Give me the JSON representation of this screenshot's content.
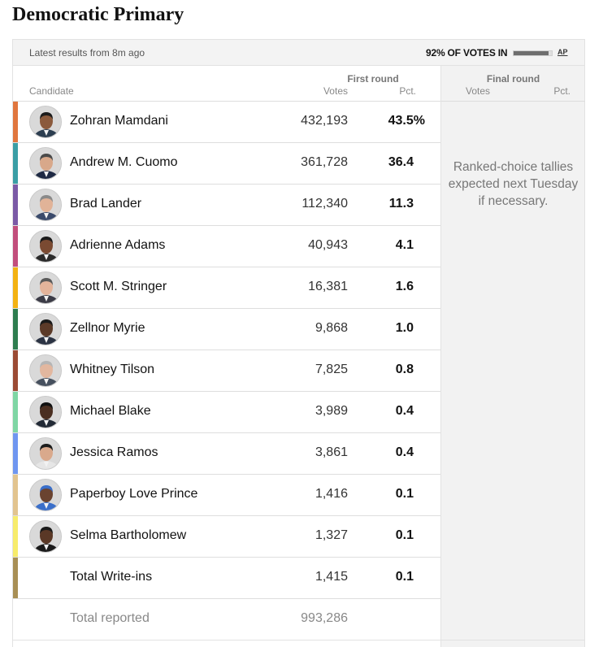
{
  "title": "Democratic Primary",
  "status": {
    "latest": "Latest results from 8m ago",
    "votes_in": "92% OF VOTES IN",
    "votes_in_fraction": 0.92,
    "source": "AP"
  },
  "headers": {
    "candidate": "Candidate",
    "first_round": "First round",
    "final_round": "Final round",
    "votes": "Votes",
    "pct": "Pct."
  },
  "final_round_note": "Ranked-choice tallies expected next Tuesday if necessary.",
  "candidates": [
    {
      "name": "Zohran Mamdani",
      "votes": "432,193",
      "pct": "43.5%",
      "color": "#e0763e",
      "skin": "#8b5a3c",
      "hair": "#1c1c1c",
      "suit": "#2c3e50"
    },
    {
      "name": "Andrew M. Cuomo",
      "votes": "361,728",
      "pct": "36.4",
      "color": "#3a9ea5",
      "skin": "#d8a88a",
      "hair": "#4a4a4a",
      "suit": "#1f2a44"
    },
    {
      "name": "Brad Lander",
      "votes": "112,340",
      "pct": "11.3",
      "color": "#7b5aa6",
      "skin": "#e1b398",
      "hair": "#8a8a8a",
      "suit": "#3a4a6b"
    },
    {
      "name": "Adrienne Adams",
      "votes": "40,943",
      "pct": "4.1",
      "color": "#c24e7c",
      "skin": "#7a4a32",
      "hair": "#1a1a1a",
      "suit": "#2a2a2a"
    },
    {
      "name": "Scott M. Stringer",
      "votes": "16,381",
      "pct": "1.6",
      "color": "#f3b212",
      "skin": "#e3b49b",
      "hair": "#5a5a5a",
      "suit": "#3b3b46"
    },
    {
      "name": "Zellnor Myrie",
      "votes": "9,868",
      "pct": "1.0",
      "color": "#2e7d4f",
      "skin": "#5b3a28",
      "hair": "#1a1a1a",
      "suit": "#2b3343"
    },
    {
      "name": "Whitney Tilson",
      "votes": "7,825",
      "pct": "0.8",
      "color": "#9b4b34",
      "skin": "#e2b79f",
      "hair": "#b5b5b5",
      "suit": "#46505e"
    },
    {
      "name": "Michael Blake",
      "votes": "3,989",
      "pct": "0.4",
      "color": "#7fd6a4",
      "skin": "#4a2e20",
      "hair": "#111111",
      "suit": "#222a36"
    },
    {
      "name": "Jessica Ramos",
      "votes": "3,861",
      "pct": "0.4",
      "color": "#6f96f0",
      "skin": "#d9a98c",
      "hair": "#1c1c1c",
      "suit": "#e6e6e6"
    },
    {
      "name": "Paperboy Love Prince",
      "votes": "1,416",
      "pct": "0.1",
      "color": "#e2c48f",
      "skin": "#6a4330",
      "hair": "#3b6fc9",
      "suit": "#3b6fc9"
    },
    {
      "name": "Selma Bartholomew",
      "votes": "1,327",
      "pct": "0.1",
      "color": "#f7ec6b",
      "skin": "#5a3826",
      "hair": "#1a1a1a",
      "suit": "#1a1a1a"
    },
    {
      "name": "Total Write-ins",
      "votes": "1,415",
      "pct": "0.1",
      "color": "#a88f55"
    }
  ],
  "total": {
    "label": "Total reported",
    "votes": "993,286"
  }
}
